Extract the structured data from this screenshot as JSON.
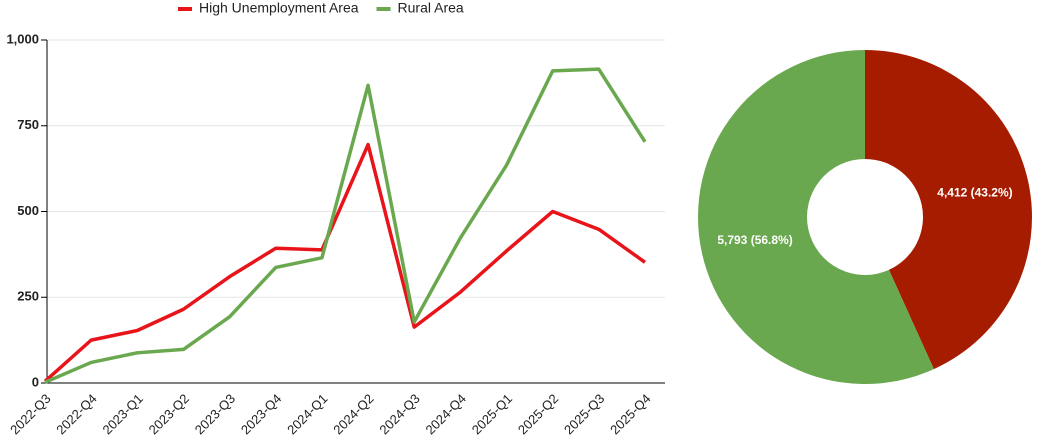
{
  "chart_data": [
    {
      "type": "line",
      "categories": [
        "2022-Q3",
        "2022-Q4",
        "2023-Q1",
        "2023-Q2",
        "2023-Q3",
        "2023-Q4",
        "2024-Q1",
        "2024-Q2",
        "2024-Q3",
        "2024-Q4",
        "2025-Q1",
        "2025-Q2",
        "2025-Q3",
        "2025-Q4"
      ],
      "series": [
        {
          "name": "High Unemployment Area",
          "color": "#e8141a",
          "values": [
            5,
            125,
            153,
            215,
            310,
            393,
            388,
            695,
            163,
            265,
            385,
            500,
            448,
            352
          ]
        },
        {
          "name": "Rural Area",
          "color": "#6aa84f",
          "values": [
            2,
            60,
            88,
            98,
            193,
            337,
            365,
            868,
            178,
            423,
            635,
            910,
            915,
            703
          ]
        }
      ],
      "ylim": [
        0,
        1000
      ],
      "yticks": [
        0,
        250,
        500,
        750,
        {
          "value": 1000,
          "label": "1,000"
        }
      ],
      "grid": true,
      "legend": "top"
    },
    {
      "type": "donut",
      "values": [
        4412,
        5793
      ],
      "value_labels": [
        "4,412 (43.2%)",
        "5,793 (56.8%)"
      ],
      "colors": [
        "#a61c00",
        "#6aa84f"
      ]
    }
  ]
}
